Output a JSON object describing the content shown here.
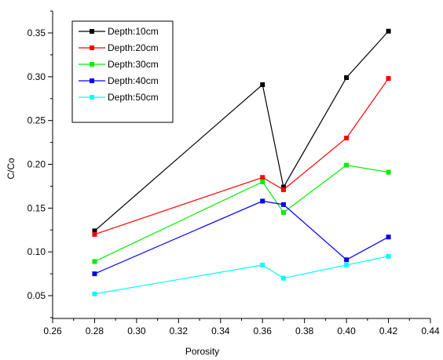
{
  "chart_data": {
    "type": "line",
    "xlabel": "Porosity",
    "ylabel": "C/Co",
    "xlim": [
      0.26,
      0.44
    ],
    "ylim": [
      0.05,
      0.35
    ],
    "x_ticks": [
      "0.26",
      "0.28",
      "0.30",
      "0.32",
      "0.34",
      "0.36",
      "0.38",
      "0.40",
      "0.42",
      "0.44"
    ],
    "y_ticks": [
      "0.05",
      "0.10",
      "0.15",
      "0.20",
      "0.25",
      "0.30",
      "0.35"
    ],
    "x": [
      0.28,
      0.36,
      0.37,
      0.4,
      0.42
    ],
    "legend_position": "top-left",
    "grid": false,
    "series": [
      {
        "name": "Depth:10cm",
        "color": "#000000",
        "values": [
          0.124,
          0.291,
          0.174,
          0.299,
          0.352
        ]
      },
      {
        "name": "Depth:20cm",
        "color": "#ff0000",
        "values": [
          0.12,
          0.185,
          0.171,
          0.23,
          0.298
        ]
      },
      {
        "name": "Depth:30cm",
        "color": "#00ee00",
        "values": [
          0.089,
          0.18,
          0.145,
          0.199,
          0.191
        ]
      },
      {
        "name": "Depth:40cm",
        "color": "#0000ff",
        "values": [
          0.075,
          0.158,
          0.154,
          0.091,
          0.117
        ]
      },
      {
        "name": "Depth:50cm",
        "color": "#00ffff",
        "values": [
          0.052,
          0.085,
          0.07,
          0.085,
          0.095
        ]
      }
    ]
  }
}
